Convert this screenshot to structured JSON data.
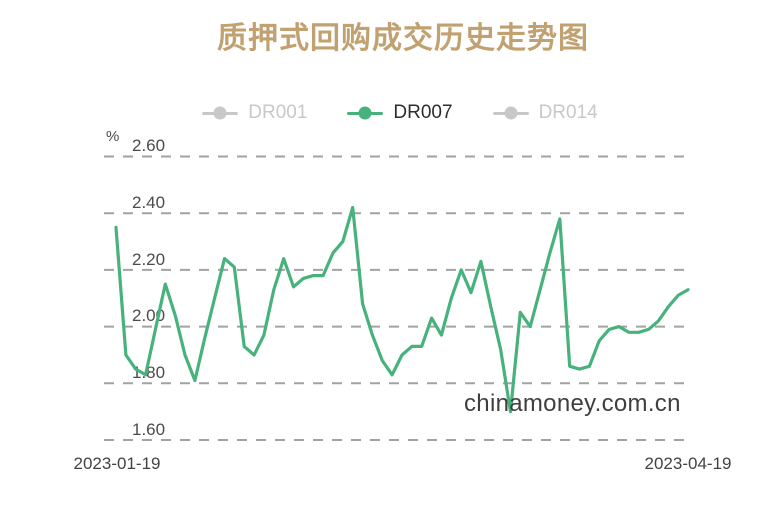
{
  "title": "质押式回购成交历史走势图",
  "legend": {
    "items": [
      {
        "label": "DR001",
        "active": false
      },
      {
        "label": "DR007",
        "active": true
      },
      {
        "label": "DR014",
        "active": false
      }
    ]
  },
  "watermark": {
    "text": "chinamoney.com.cn"
  },
  "colors": {
    "title_gold": "#c1a170",
    "line_green": "#47b27c",
    "inactive_gray": "#c8c8c8",
    "grid_gray": "#a2a2a2",
    "tick_text": "#4b4b4b",
    "watermark_text": "#3f3f3f"
  },
  "chart_data": {
    "type": "line",
    "title": "质押式回购成交历史走势图",
    "series": [
      {
        "name": "DR007",
        "values": [
          2.35,
          1.9,
          1.85,
          1.83,
          1.99,
          2.15,
          2.04,
          1.9,
          1.81,
          1.96,
          2.1,
          2.24,
          2.21,
          1.93,
          1.9,
          1.97,
          2.13,
          2.24,
          2.14,
          2.17,
          2.18,
          2.18,
          2.26,
          2.3,
          2.42,
          2.08,
          1.97,
          1.88,
          1.83,
          1.9,
          1.93,
          1.93,
          2.03,
          1.97,
          2.1,
          2.2,
          2.12,
          2.23,
          2.07,
          1.92,
          1.7,
          2.05,
          2.0,
          2.13,
          2.26,
          2.38,
          1.86,
          1.85,
          1.86,
          1.95,
          1.99,
          2.0,
          1.98,
          1.98,
          1.99,
          2.02,
          2.07,
          2.11,
          2.13
        ]
      }
    ],
    "inactive_series": [
      "DR001",
      "DR014"
    ],
    "y_unit": "%",
    "y_ticks": [
      "2.60",
      "2.40",
      "2.20",
      "2.00",
      "1.80",
      "1.60"
    ],
    "ylim": [
      1.6,
      2.6
    ],
    "x_labels": [
      "2023-01-19",
      "2023-04-19"
    ],
    "grid": "horizontal dashed lines",
    "legend_position": "top center"
  }
}
